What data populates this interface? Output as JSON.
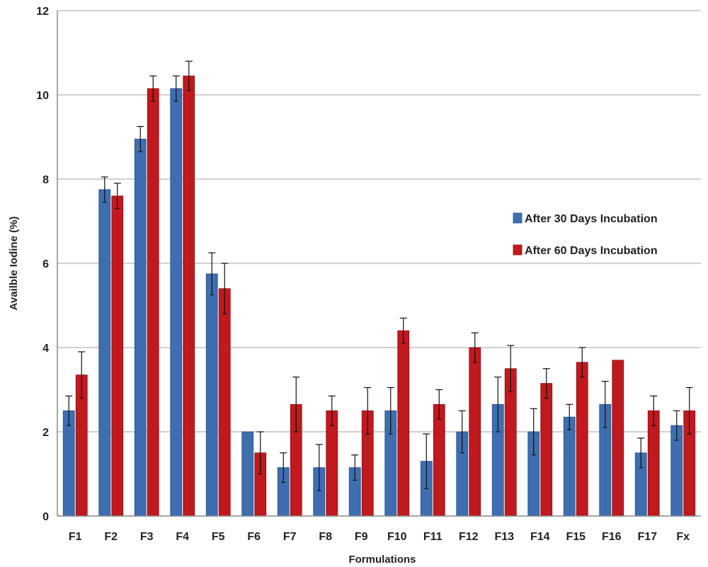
{
  "chart_data": {
    "type": "bar",
    "title": "",
    "xlabel": "Formulations",
    "ylabel": "Availble Iodine (%)",
    "ylim": [
      0,
      12
    ],
    "yticks": [
      0,
      2,
      4,
      6,
      8,
      10,
      12
    ],
    "grid": true,
    "legend_position": "right",
    "categories": [
      "F1",
      "F2",
      "F3",
      "F4",
      "F5",
      "F6",
      "F7",
      "F8",
      "F9",
      "F10",
      "F11",
      "F12",
      "F13",
      "F14",
      "F15",
      "F16",
      "F17",
      "Fx"
    ],
    "series": [
      {
        "name": "After 30 Days Incubation",
        "color": "#3e6eb0",
        "values": [
          2.5,
          7.75,
          8.95,
          10.15,
          5.75,
          2.0,
          1.15,
          1.15,
          1.15,
          2.5,
          1.3,
          2.0,
          2.65,
          2.0,
          2.35,
          2.65,
          1.5,
          2.15
        ],
        "errors": [
          0.35,
          0.3,
          0.3,
          0.3,
          0.5,
          0.0,
          0.35,
          0.55,
          0.3,
          0.55,
          0.65,
          0.5,
          0.65,
          0.55,
          0.3,
          0.55,
          0.35,
          0.35
        ]
      },
      {
        "name": "After 60 Days Incubation",
        "color": "#c0191e",
        "values": [
          3.35,
          7.6,
          10.15,
          10.45,
          5.4,
          1.5,
          2.65,
          2.5,
          2.5,
          4.4,
          2.65,
          4.0,
          3.5,
          3.15,
          3.65,
          3.7,
          2.5,
          2.5
        ],
        "errors": [
          0.55,
          0.3,
          0.3,
          0.35,
          0.6,
          0.5,
          0.65,
          0.35,
          0.55,
          0.3,
          0.35,
          0.35,
          0.55,
          0.35,
          0.35,
          0.0,
          0.35,
          0.55
        ]
      }
    ]
  }
}
